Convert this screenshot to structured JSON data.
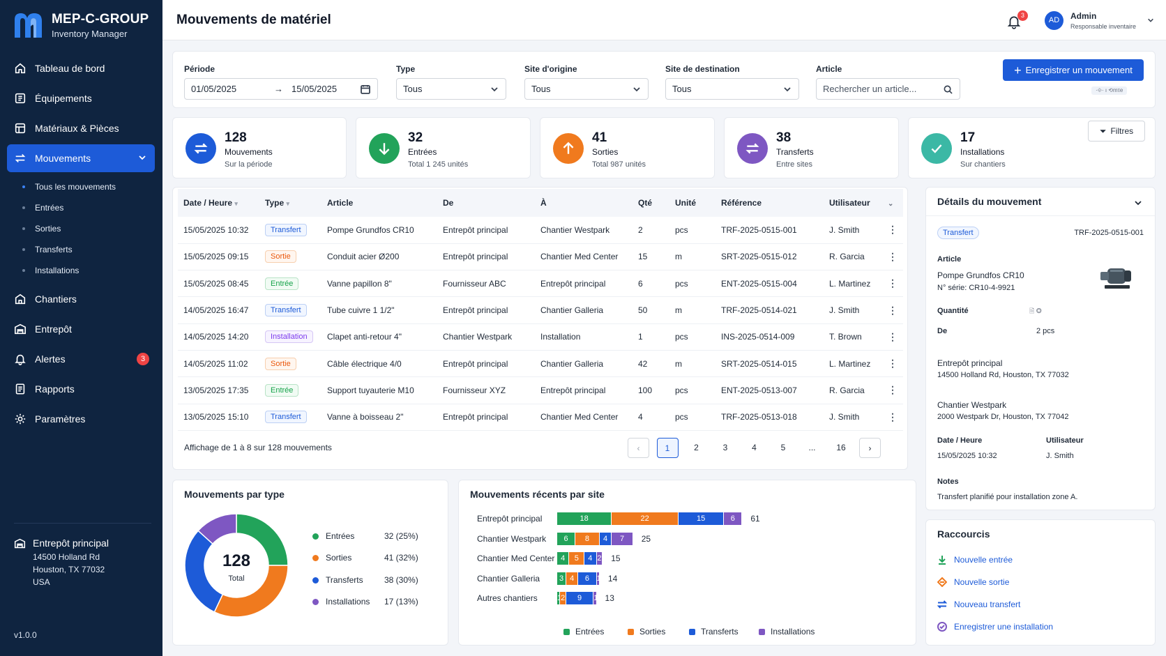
{
  "brand": {
    "name": "MEP-C-GROUP",
    "subtitle": "Inventory Manager"
  },
  "nav": [
    {
      "label": "Tableau de bord",
      "icon": "home-icon"
    },
    {
      "label": "Équipements",
      "icon": "equipment-icon"
    },
    {
      "label": "Matériaux & Pièces",
      "icon": "parts-icon"
    },
    {
      "label": "Mouvements",
      "icon": "transfer-icon",
      "active": true
    },
    {
      "label": "Chantiers",
      "icon": "building-icon"
    },
    {
      "label": "Entrepôt",
      "icon": "warehouse-icon"
    },
    {
      "label": "Alertes",
      "icon": "bell-icon",
      "badge": "3"
    },
    {
      "label": "Rapports",
      "icon": "report-icon"
    },
    {
      "label": "Paramètres",
      "icon": "gear-icon"
    }
  ],
  "subnav": [
    "Tous les mouvements",
    "Entrées",
    "Sorties",
    "Transferts",
    "Installations"
  ],
  "warehouse": {
    "name": "Entrepôt principal",
    "line1": "14500 Holland Rd",
    "line2": "Houston, TX 77032",
    "line3": "USA"
  },
  "version": "v1.0.0",
  "header": {
    "title": "Mouvements de matériel",
    "notif_count": "3",
    "user_initials": "AD",
    "user_name": "Admin",
    "user_role": "Responsable inventaire"
  },
  "filters": {
    "period_label": "Période",
    "date_from": "01/05/2025",
    "date_to": "15/05/2025",
    "type_label": "Type",
    "type_value": "Tous",
    "origin_label": "Site d'origine",
    "origin_value": "Tous",
    "dest_label": "Site de destination",
    "dest_value": "Tous",
    "article_label": "Article",
    "article_placeholder": "Rechercher un article...",
    "primary_button": "Enregistrer un mouvement",
    "tiny_tag": "·⟐· ı ⟲mτe"
  },
  "kpis": [
    {
      "value": "128",
      "label": "Mouvements",
      "sub": "Sur la période",
      "color": "#1d5bd8",
      "icon": "transfer-icon"
    },
    {
      "value": "32",
      "label": "Entrées",
      "sub": "Total 1 245 unités",
      "color": "#22a35a",
      "icon": "arrow-down-icon"
    },
    {
      "value": "41",
      "label": "Sorties",
      "sub": "Total 987 unités",
      "color": "#f07a1e",
      "icon": "arrow-up-icon"
    },
    {
      "value": "38",
      "label": "Transferts",
      "sub": "Entre sites",
      "color": "#7e57c2",
      "icon": "transfer-icon"
    },
    {
      "value": "17",
      "label": "Installations",
      "sub": "Sur chantiers",
      "color": "#3bb8a5",
      "icon": "check-icon"
    }
  ],
  "filter_button": "Filtres",
  "table": {
    "headers": [
      "Date / Heure",
      "Type",
      "Article",
      "De",
      "À",
      "Qté",
      "Unité",
      "Référence",
      "Utilisateur"
    ],
    "rows": [
      [
        "15/05/2025 10:32",
        "Transfert",
        "Pompe Grundfos CR10",
        "Entrepôt principal",
        "Chantier Westpark",
        "2",
        "pcs",
        "TRF-2025-0515-001",
        "J. Smith"
      ],
      [
        "15/05/2025 09:15",
        "Sortie",
        "Conduit acier Ø200",
        "Entrepôt principal",
        "Chantier Med Center",
        "15",
        "m",
        "SRT-2025-0515-012",
        "R. Garcia"
      ],
      [
        "15/05/2025 08:45",
        "Entrée",
        "Vanne papillon 8\"",
        "Fournisseur ABC",
        "Entrepôt principal",
        "6",
        "pcs",
        "ENT-2025-0515-004",
        "L. Martinez"
      ],
      [
        "14/05/2025 16:47",
        "Transfert",
        "Tube cuivre 1 1/2\"",
        "Entrepôt principal",
        "Chantier Galleria",
        "50",
        "m",
        "TRF-2025-0514-021",
        "J. Smith"
      ],
      [
        "14/05/2025 14:20",
        "Installation",
        "Clapet anti-retour 4\"",
        "Chantier Westpark",
        "Installation",
        "1",
        "pcs",
        "INS-2025-0514-009",
        "T. Brown"
      ],
      [
        "14/05/2025 11:02",
        "Sortie",
        "Câble électrique 4/0",
        "Entrepôt principal",
        "Chantier Galleria",
        "42",
        "m",
        "SRT-2025-0514-015",
        "L. Martinez"
      ],
      [
        "13/05/2025 17:35",
        "Entrée",
        "Support tuyauterie M10",
        "Fournisseur XYZ",
        "Entrepôt principal",
        "100",
        "pcs",
        "ENT-2025-0513-007",
        "R. Garcia"
      ],
      [
        "13/05/2025 15:10",
        "Transfert",
        "Vanne à boisseau 2\"",
        "Entrepôt principal",
        "Chantier Med Center",
        "4",
        "pcs",
        "TRF-2025-0513-018",
        "J. Smith"
      ]
    ],
    "footer": "Affichage de 1 à 8 sur 128 mouvements",
    "pages": [
      "1",
      "2",
      "3",
      "4",
      "5",
      "...",
      "16"
    ],
    "current_page": "1"
  },
  "detail": {
    "title": "Détails du mouvement",
    "type": "Transfert",
    "reference": "TRF-2025-0515-001",
    "article_label": "Article",
    "article_name": "Pompe Grundfos CR10",
    "serial": "N° série: CR10-4-9921",
    "qty_label": "Quantité",
    "qty_value": "2 pcs",
    "from_label": "De",
    "from_name": "Entrepôt principal",
    "from_addr": "14500 Holland Rd, Houston, TX 77032",
    "to_name": "Chantier Westpark",
    "to_addr": "2000 Westpark Dr, Houston, TX 77042",
    "date_label": "Date / Heure",
    "date_value": "15/05/2025 10:32",
    "user_label": "Utilisateur",
    "user_value": "J. Smith",
    "notes_label": "Notes",
    "notes_value": "Transfert planifié pour installation zone A."
  },
  "donut": {
    "title": "Mouvements par type",
    "total": "128",
    "total_label": "Total",
    "items": [
      {
        "name": "Entrées",
        "value": 32,
        "pct": "32  (25%)",
        "color": "#22a35a"
      },
      {
        "name": "Sorties",
        "value": 41,
        "pct": "41  (32%)",
        "color": "#f07a1e"
      },
      {
        "name": "Transferts",
        "value": 38,
        "pct": "38  (30%)",
        "color": "#1d5bd8"
      },
      {
        "name": "Installations",
        "value": 17,
        "pct": "17  (13%)",
        "color": "#7e57c2"
      }
    ]
  },
  "chart_data": {
    "type": "bar",
    "stacked": true,
    "orientation": "horizontal",
    "title": "Mouvements récents par site",
    "categories": [
      "Entrepôt principal",
      "Chantier Westpark",
      "Chantier Med Center",
      "Chantier Galleria",
      "Autres chantiers"
    ],
    "series": [
      {
        "name": "Entrées",
        "values": [
          18,
          6,
          4,
          3,
          1
        ],
        "color": "#22a35a"
      },
      {
        "name": "Sorties",
        "values": [
          22,
          8,
          5,
          4,
          2
        ],
        "color": "#f07a1e"
      },
      {
        "name": "Transferts",
        "values": [
          15,
          4,
          4,
          6,
          9
        ],
        "color": "#1d5bd8"
      },
      {
        "name": "Installations",
        "values": [
          6,
          7,
          2,
          1,
          1
        ],
        "color": "#7e57c2"
      }
    ],
    "totals": [
      "61",
      "25",
      "15",
      "14",
      "13"
    ],
    "legend": "bottom"
  },
  "shortcuts": {
    "title": "Raccourcis",
    "items": [
      {
        "label": "Nouvelle entrée",
        "color": "#22a35a"
      },
      {
        "label": "Nouvelle sortie",
        "color": "#f07a1e"
      },
      {
        "label": "Nouveau transfert",
        "color": "#1d5bd8"
      },
      {
        "label": "Enregistrer une installation",
        "color": "#7e57c2"
      }
    ]
  }
}
